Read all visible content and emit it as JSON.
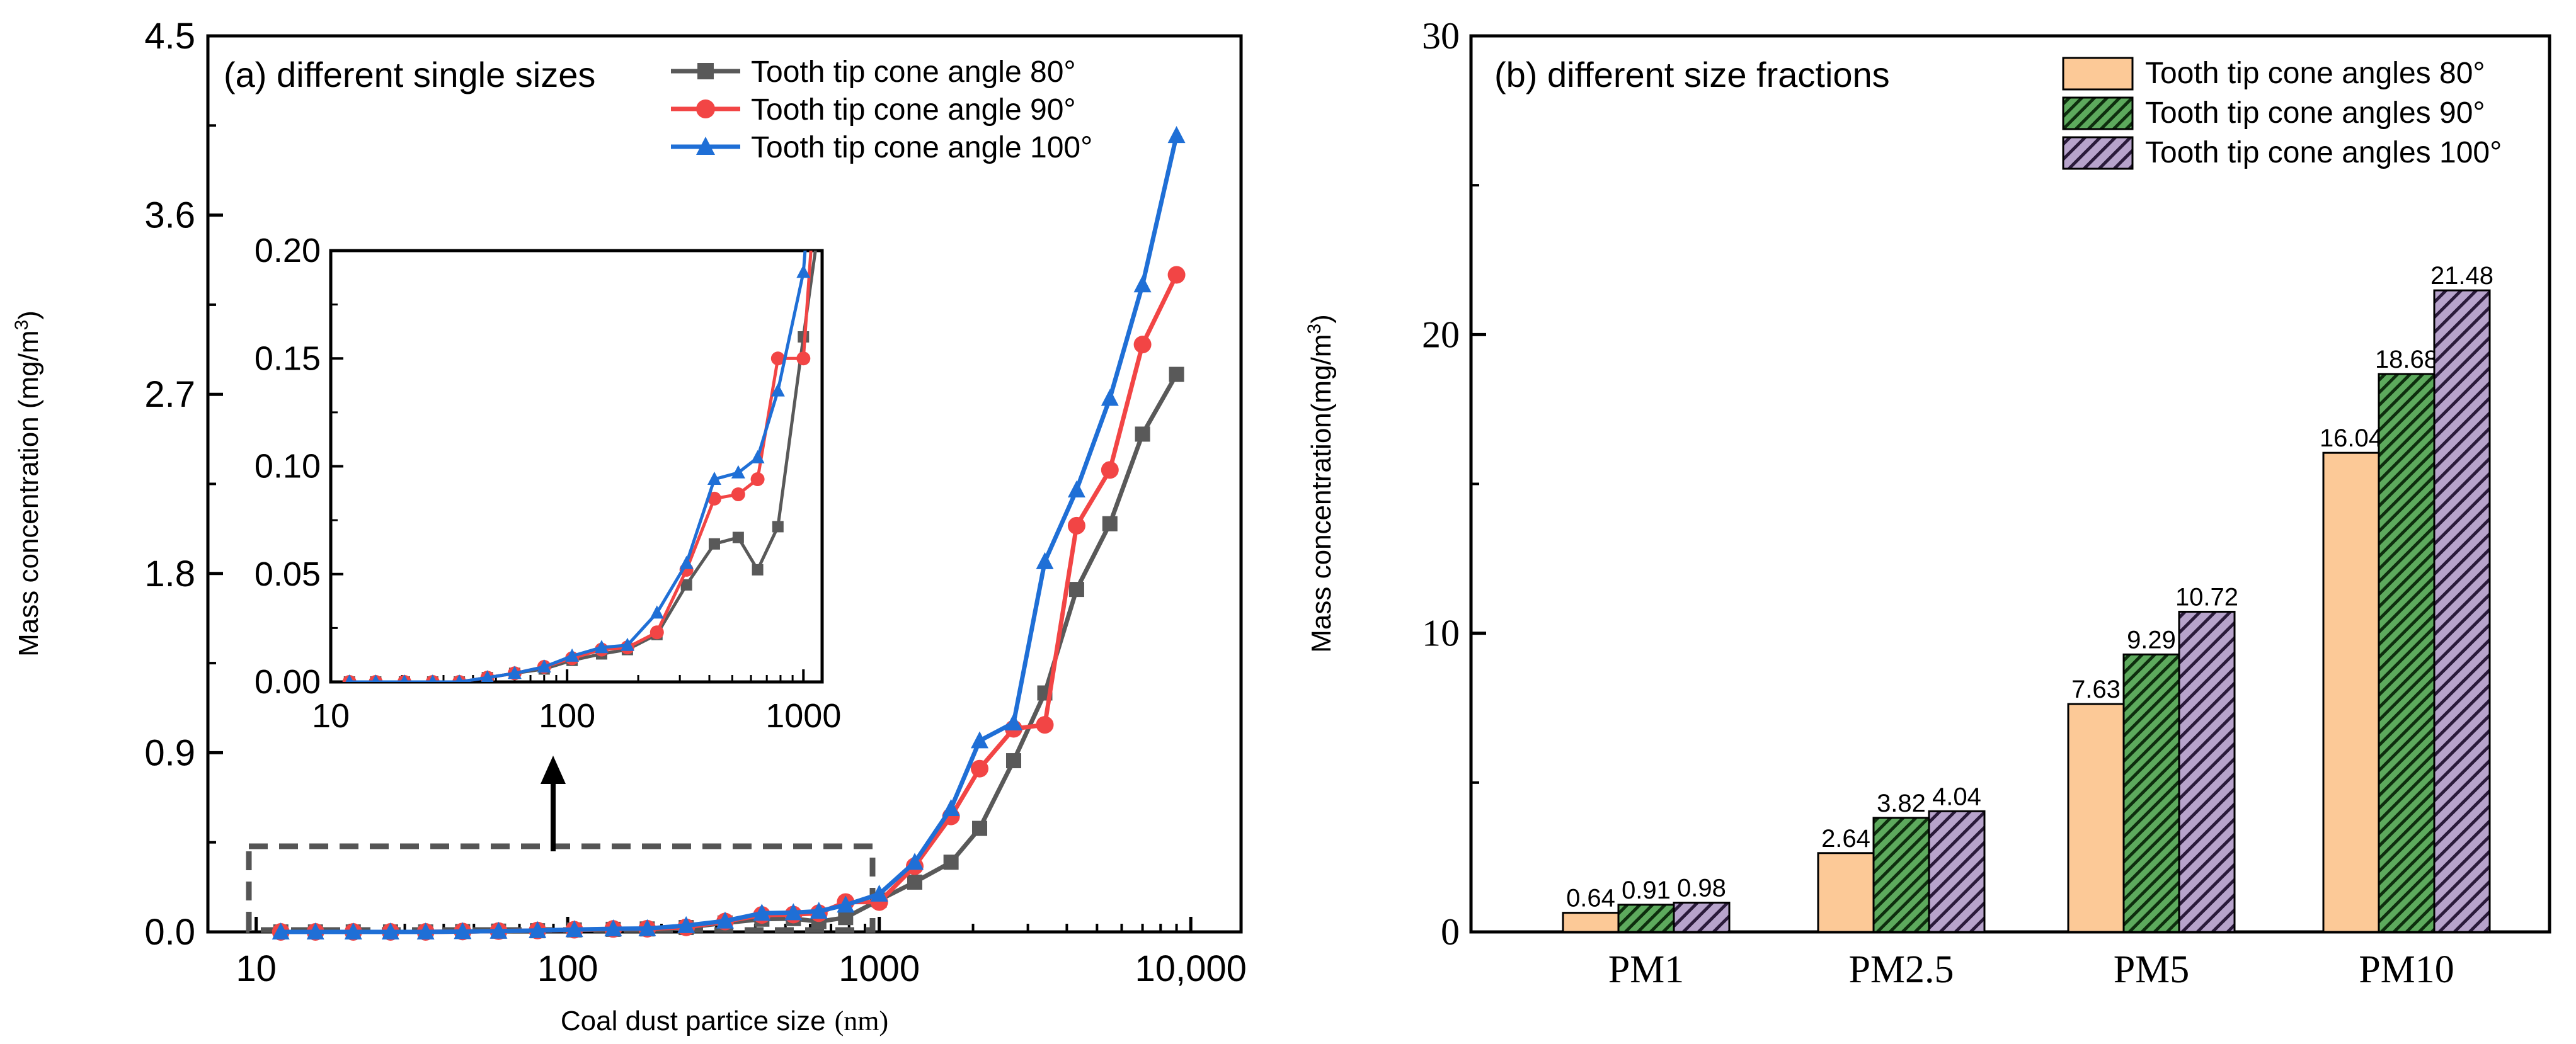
{
  "chart_data": [
    {
      "type": "line",
      "title": "(a) different single sizes",
      "xlabel": "Coal dust partice size",
      "xlabel_unit": "(nm)",
      "ylabel": "Mass concentration (mg/m",
      "ylabel_sup": "3",
      "ylabel_close": ")",
      "xscale": "log",
      "xlim": [
        7,
        14500
      ],
      "ylim": [
        0,
        4.5
      ],
      "xticks": [
        10,
        100,
        1000,
        10000
      ],
      "xtick_labels": [
        "10",
        "100",
        "1000",
        "10,000"
      ],
      "yticks": [
        0,
        0.9,
        1.8,
        2.7,
        3.6,
        4.5
      ],
      "ytick_labels": [
        "0.0",
        "0.9",
        "1.8",
        "2.7",
        "3.6",
        "4.5"
      ],
      "legend_position": "top-right",
      "x": [
        12,
        15.5,
        20.5,
        27,
        35,
        46,
        60,
        80,
        105,
        140,
        180,
        240,
        320,
        420,
        530,
        640,
        780,
        1000,
        1300,
        1700,
        2100,
        2700,
        3400,
        4300,
        5500,
        7000,
        9000
      ],
      "series": [
        {
          "name": "Tooth tip cone angle 80°",
          "color": "#595959",
          "marker": "square",
          "values": [
            0,
            0,
            0,
            0,
            0,
            0.002,
            0.004,
            0.006,
            0.01,
            0.013,
            0.015,
            0.022,
            0.045,
            0.064,
            0.067,
            0.052,
            0.072,
            0.16,
            0.25,
            0.35,
            0.52,
            0.86,
            1.2,
            1.72,
            2.05,
            2.5,
            2.8
          ]
        },
        {
          "name": "Tooth tip cone angle 90°",
          "color": "#f24545",
          "marker": "circle",
          "values": [
            0,
            0,
            0,
            0,
            0,
            0.002,
            0.004,
            0.007,
            0.011,
            0.015,
            0.016,
            0.023,
            0.052,
            0.085,
            0.087,
            0.094,
            0.15,
            0.15,
            0.33,
            0.58,
            0.82,
            1.02,
            1.04,
            2.04,
            2.32,
            2.95,
            3.3
          ]
        },
        {
          "name": "Tooth tip cone angle 100°",
          "color": "#1f6fd6",
          "marker": "triangle",
          "values": [
            0,
            0,
            0,
            0,
            0,
            0.002,
            0.004,
            0.007,
            0.012,
            0.016,
            0.017,
            0.032,
            0.055,
            0.094,
            0.097,
            0.104,
            0.135,
            0.19,
            0.35,
            0.62,
            0.96,
            1.05,
            1.86,
            2.22,
            2.68,
            3.25,
            4.0
          ]
        }
      ],
      "inset": {
        "xlim": [
          10,
          1200
        ],
        "ylim": [
          0,
          0.2
        ],
        "xticks": [
          10,
          100,
          1000
        ],
        "xtick_labels": [
          "10",
          "100",
          "1000"
        ],
        "yticks": [
          0,
          0.05,
          0.1,
          0.15,
          0.2
        ],
        "ytick_labels": [
          "0.00",
          "0.05",
          "0.10",
          "0.15",
          "0.20"
        ]
      }
    },
    {
      "type": "bar",
      "title": "(b) different size fractions",
      "xlabel": "",
      "ylabel": "Mass concentration(mg/m",
      "ylabel_sup": "3",
      "ylabel_close": ")",
      "ylim": [
        0,
        30
      ],
      "yticks": [
        0,
        10,
        20,
        30
      ],
      "ytick_labels": [
        "0",
        "10",
        "20",
        "30"
      ],
      "legend_position": "top-right",
      "categories": [
        "PM1",
        "PM2.5",
        "PM5",
        "PM10"
      ],
      "series": [
        {
          "name": "Tooth tip cone angles 80°",
          "color": "#fcc997",
          "pattern": "solid",
          "values": [
            0.64,
            2.64,
            7.63,
            16.04
          ],
          "labels": [
            "0.64",
            "2.64",
            "7.63",
            "16.04"
          ]
        },
        {
          "name": "Tooth tip cone angles 90°",
          "color": "#5daa5d",
          "pattern": "hatch-dense",
          "values": [
            0.91,
            3.82,
            9.29,
            18.68
          ],
          "labels": [
            "0.91",
            "3.82",
            "9.29",
            "18.68"
          ]
        },
        {
          "name": "Tooth tip cone angles 100°",
          "color": "#9e85b7",
          "pattern": "hatch-sparse",
          "values": [
            0.98,
            4.04,
            10.72,
            21.48
          ],
          "labels": [
            "0.98",
            "4.04",
            "10.72",
            "21.48"
          ]
        }
      ]
    }
  ]
}
